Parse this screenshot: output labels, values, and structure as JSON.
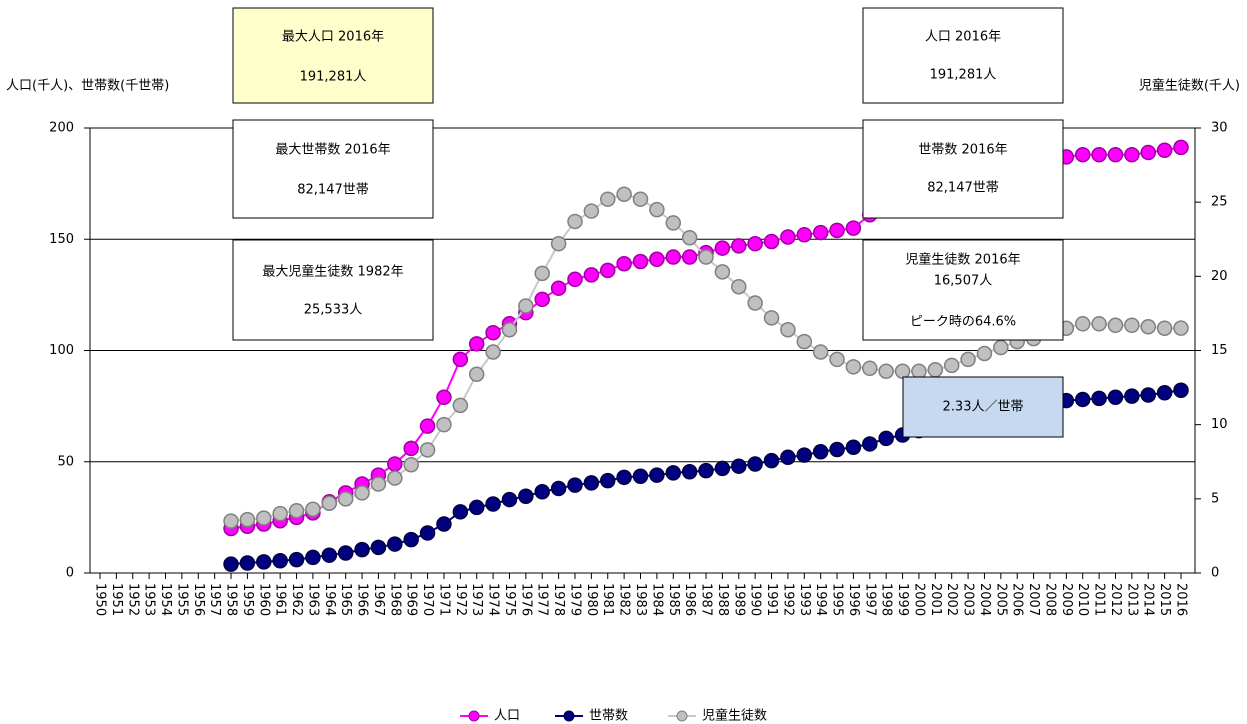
{
  "chart_data": {
    "type": "line",
    "y_label": "人口(千人)、世帯数(千世帯)",
    "y2_label": "児童生徒数(千人)",
    "categories": [
      "1950",
      "1951",
      "1952",
      "1953",
      "1954",
      "1955",
      "1956",
      "1957",
      "1958",
      "1959",
      "1960",
      "1961",
      "1962",
      "1963",
      "1964",
      "1965",
      "1966",
      "1967",
      "1968",
      "1969",
      "1970",
      "1971",
      "1972",
      "1973",
      "1974",
      "1975",
      "1976",
      "1977",
      "1978",
      "1979",
      "1980",
      "1981",
      "1982",
      "1983",
      "1984",
      "1985",
      "1986",
      "1987",
      "1988",
      "1989",
      "1990",
      "1991",
      "1992",
      "1993",
      "1994",
      "1995",
      "1996",
      "1997",
      "1998",
      "1999",
      "2000",
      "2001",
      "2002",
      "2003",
      "2004",
      "2005",
      "2006",
      "2007",
      "2008",
      "2009",
      "2010",
      "2011",
      "2012",
      "2013",
      "2014",
      "2015",
      "2016"
    ],
    "series": [
      {
        "name": "人口",
        "color": "#ff00ff",
        "axis": "y",
        "values": [
          null,
          null,
          null,
          null,
          null,
          null,
          null,
          null,
          20,
          21,
          22,
          23.5,
          25,
          27,
          32,
          36,
          40,
          44,
          49,
          56,
          66,
          79,
          96,
          103,
          108,
          112,
          117,
          123,
          128,
          132,
          134,
          136,
          139,
          140,
          141,
          142,
          142,
          144,
          146,
          147,
          148,
          149,
          151,
          152,
          153,
          154,
          155,
          161,
          163,
          166,
          169,
          171,
          173,
          176,
          178,
          180,
          182,
          184,
          186,
          187,
          188,
          188,
          188,
          188,
          189,
          190,
          191.281
        ]
      },
      {
        "name": "世帯数",
        "color": "#000080",
        "axis": "y",
        "values": [
          null,
          null,
          null,
          null,
          null,
          null,
          null,
          null,
          4,
          4.5,
          5,
          5.5,
          6,
          7,
          8,
          9,
          10.5,
          11.5,
          13,
          15,
          18,
          22,
          27.5,
          29.5,
          31,
          33,
          34.5,
          36.5,
          38,
          39.5,
          40.5,
          41.5,
          43,
          43.5,
          44,
          45,
          45.5,
          46,
          47,
          48,
          49,
          50.5,
          52,
          53,
          54.5,
          55.5,
          56.5,
          58,
          60.5,
          62,
          64,
          66,
          68,
          70,
          72,
          73.5,
          75,
          76,
          77,
          77.5,
          78,
          78.5,
          79,
          79.5,
          80,
          81,
          82.147
        ]
      },
      {
        "name": "児童生徒数",
        "color": "#c0c0c0",
        "axis": "y2",
        "values": [
          null,
          null,
          null,
          null,
          null,
          null,
          null,
          null,
          3.5,
          3.6,
          3.7,
          4.0,
          4.2,
          4.3,
          4.7,
          5.0,
          5.4,
          6.0,
          6.4,
          7.3,
          8.3,
          10.0,
          11.3,
          13.4,
          14.9,
          16.4,
          18.0,
          20.2,
          22.2,
          23.7,
          24.4,
          25.2,
          25.533,
          25.2,
          24.5,
          23.6,
          22.6,
          21.3,
          20.3,
          19.3,
          18.2,
          17.2,
          16.4,
          15.6,
          14.9,
          14.4,
          13.9,
          13.8,
          13.6,
          13.6,
          13.6,
          13.7,
          14.0,
          14.4,
          14.8,
          15.2,
          15.6,
          15.8,
          16.2,
          16.5,
          16.8,
          16.8,
          16.7,
          16.7,
          16.6,
          16.5,
          16.507
        ]
      }
    ],
    "ylim": [
      0,
      200
    ],
    "yticks": [
      0,
      50,
      100,
      150,
      200
    ],
    "y2lim": [
      0,
      30
    ],
    "y2ticks": [
      0,
      5,
      10,
      15,
      20,
      25,
      30
    ],
    "grid": true,
    "annotations": [
      {
        "lines": [
          "最大人口 2016年",
          "191,281人"
        ]
      },
      {
        "lines": [
          "最大世帯数 2016年",
          "82,147世帯"
        ]
      },
      {
        "lines": [
          "最大児童生徒数 1982年",
          "25,533人"
        ]
      },
      {
        "lines": [
          "人口 2016年",
          "191,281人"
        ]
      },
      {
        "lines": [
          "世帯数 2016年",
          "82,147世帯"
        ]
      },
      {
        "lines": [
          "児童生徒数 2016年",
          "16,507人",
          "ピーク時の64.6%"
        ]
      },
      {
        "lines": [
          "2.33人／世帯"
        ]
      }
    ]
  }
}
